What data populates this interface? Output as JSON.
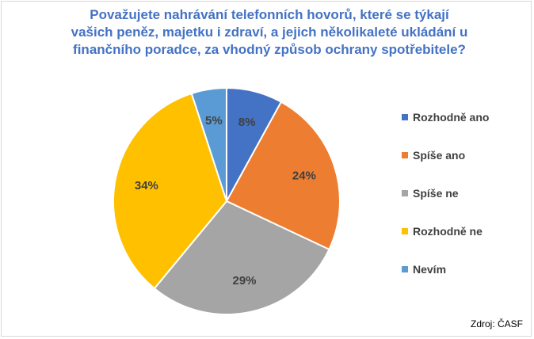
{
  "chart_data": {
    "type": "pie",
    "title_lines": [
      "Považujete nahrávání telefonních hovorů, které se týkají",
      "vašich peněz, majetku i zdraví, a jejich několikaleté ukládání u",
      "finančního poradce, za vhodný způsob ochrany spotřebitele?"
    ],
    "slices": [
      {
        "label": "Rozhodně ano",
        "value": 8,
        "display": "8%",
        "color": "#4472c4"
      },
      {
        "label": "Spíše ano",
        "value": 24,
        "display": "24%",
        "color": "#ed7d31"
      },
      {
        "label": "Spíše ne",
        "value": 29,
        "display": "29%",
        "color": "#a5a5a5"
      },
      {
        "label": "Rozhodně ne",
        "value": 34,
        "display": "34%",
        "color": "#ffc000"
      },
      {
        "label": "Nevím",
        "value": 5,
        "display": "5%",
        "color": "#5b9bd5"
      }
    ],
    "legend_position": "right"
  },
  "source_text": "Zdroj: ČASF"
}
